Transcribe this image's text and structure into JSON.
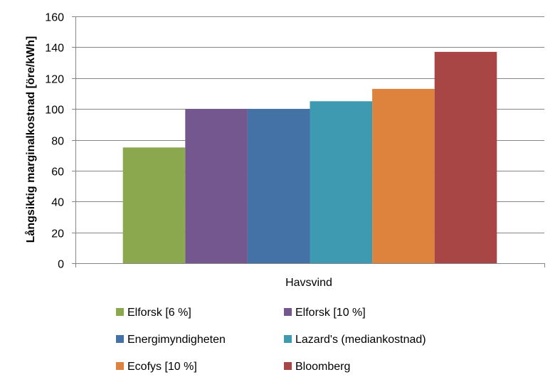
{
  "chart_data": {
    "type": "bar",
    "categories": [
      "Havsvind"
    ],
    "series": [
      {
        "name": "Elforsk [6 %]",
        "values": [
          75
        ],
        "color": "#8BA84F"
      },
      {
        "name": "Elforsk [10 %]",
        "values": [
          100
        ],
        "color": "#73578E"
      },
      {
        "name": "Energimyndigheten",
        "values": [
          100
        ],
        "color": "#4472A6"
      },
      {
        "name": "Lazard's (mediankostnad)",
        "values": [
          105
        ],
        "color": "#3E9AB0"
      },
      {
        "name": "Ecofys [10 %]",
        "values": [
          113
        ],
        "color": "#DE833D"
      },
      {
        "name": "Bloomberg",
        "values": [
          137
        ],
        "color": "#A84646"
      }
    ],
    "title": "",
    "xlabel": "",
    "ylabel": "Långsiktig marginalkostnad  [öre/kWh]",
    "ylim": [
      0,
      160
    ],
    "yticks": [
      0,
      20,
      40,
      60,
      80,
      100,
      120,
      140,
      160
    ],
    "grid": true,
    "legend": "bottom"
  }
}
